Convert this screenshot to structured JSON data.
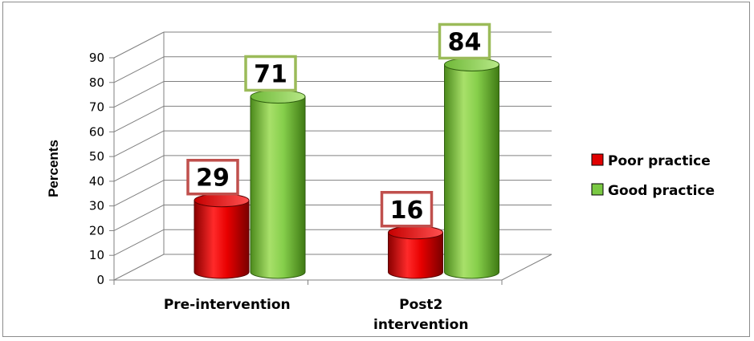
{
  "chart_data": {
    "type": "bar",
    "style": "3d-cylinder",
    "categories": [
      "Pre-intervention",
      "Post2 intervention"
    ],
    "series": [
      {
        "name": "Poor practice",
        "values": [
          29,
          16
        ],
        "color": "#e00000"
      },
      {
        "name": "Good practice",
        "values": [
          71,
          84
        ],
        "color": "#7ac943"
      }
    ],
    "title": "",
    "xlabel": "",
    "ylabel": "Percents",
    "ylim": [
      0,
      90
    ],
    "yticks": [
      0,
      10,
      20,
      30,
      40,
      50,
      60,
      70,
      80,
      90
    ],
    "grid": true,
    "legend_position": "right",
    "data_labels": true,
    "label_border_colors": [
      "#c0504d",
      "#9bbb59"
    ]
  }
}
